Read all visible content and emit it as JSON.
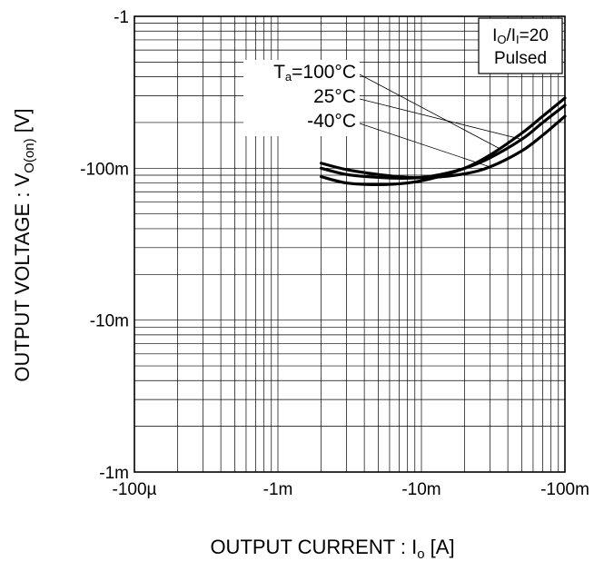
{
  "chart_data": {
    "type": "line",
    "xlabel": {
      "main": "OUTPUT CURRENT : I",
      "sub": "o",
      "unit": " [A]"
    },
    "ylabel": {
      "main": "OUTPUT VOLTAGE : V",
      "sub": "O(on)",
      "unit": " [V]"
    },
    "xscale": "log",
    "yscale": "log",
    "xlim": [
      -0.0001,
      -0.1
    ],
    "ylim": [
      -0.001,
      -1
    ],
    "x_ticks": [
      {
        "value": -0.0001,
        "label": "-100µ"
      },
      {
        "value": -0.001,
        "label": "-1m"
      },
      {
        "value": -0.01,
        "label": "-10m"
      },
      {
        "value": -0.1,
        "label": "-100m"
      }
    ],
    "y_ticks": [
      {
        "value": -1,
        "label": "-1"
      },
      {
        "value": -0.1,
        "label": "-100m"
      },
      {
        "value": -0.01,
        "label": "-10m"
      },
      {
        "value": -0.001,
        "label": "-1m"
      }
    ],
    "grid": true,
    "conditions": {
      "ratio_main": "I",
      "ratio_sub1": "O",
      "ratio_mid": "/I",
      "ratio_sub2": "I",
      "ratio_value": "=20",
      "mode": "Pulsed"
    },
    "legend_prefix": {
      "main": "T",
      "sub": "a"
    },
    "series": [
      {
        "name": "=100°C",
        "x": [
          -0.002,
          -0.003,
          -0.005,
          -0.008,
          -0.012,
          -0.02,
          -0.03,
          -0.05,
          -0.07,
          -0.1
        ],
        "y": [
          -0.088,
          -0.08,
          -0.078,
          -0.08,
          -0.086,
          -0.1,
          -0.122,
          -0.17,
          -0.22,
          -0.29
        ]
      },
      {
        "name": "25°C",
        "x": [
          -0.002,
          -0.003,
          -0.005,
          -0.008,
          -0.012,
          -0.02,
          -0.03,
          -0.05,
          -0.07,
          -0.1
        ],
        "y": [
          -0.1,
          -0.091,
          -0.087,
          -0.086,
          -0.089,
          -0.1,
          -0.117,
          -0.155,
          -0.2,
          -0.26
        ]
      },
      {
        "name": "-40°C",
        "x": [
          -0.002,
          -0.003,
          -0.005,
          -0.008,
          -0.012,
          -0.02,
          -0.03,
          -0.05,
          -0.07,
          -0.1
        ],
        "y": [
          -0.108,
          -0.098,
          -0.091,
          -0.087,
          -0.087,
          -0.092,
          -0.102,
          -0.13,
          -0.165,
          -0.22
        ]
      }
    ],
    "legend_placement": "upper-center with leader lines",
    "colors": {
      "series": "#000000",
      "grid": "#000000",
      "background": "#ffffff"
    }
  }
}
